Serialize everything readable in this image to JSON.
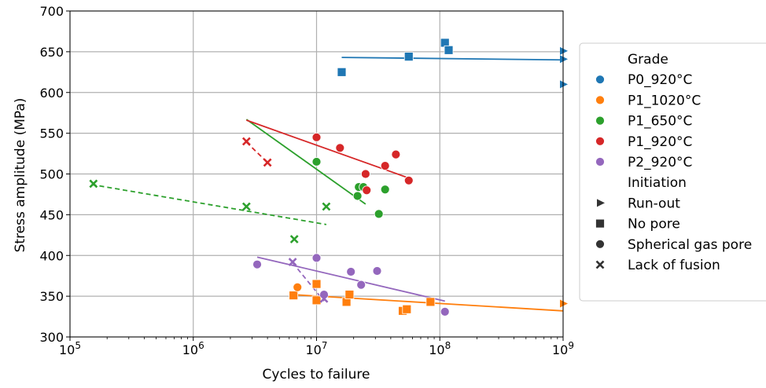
{
  "chart_data": {
    "type": "scatter",
    "xlabel": "Cycles to failure",
    "ylabel": "Stress amplitude (MPa)",
    "xscale": "log",
    "xlim": [
      100000,
      1000000000
    ],
    "ylim": [
      300,
      700
    ],
    "x_ticks": [
      100000,
      1000000,
      10000000,
      100000000,
      1000000000
    ],
    "x_tick_base": "10",
    "x_tick_exponents": [
      "5",
      "6",
      "7",
      "8",
      "9"
    ],
    "y_ticks": [
      "300",
      "350",
      "400",
      "450",
      "500",
      "550",
      "600",
      "650",
      "700"
    ],
    "grid": true,
    "legend_position": "right",
    "legend": {
      "hue_title": "Grade",
      "style_title": "Initiation",
      "grades": [
        {
          "name": "P0_920°C",
          "color": "#1f77b4"
        },
        {
          "name": "P1_1020°C",
          "color": "#ff7f0e"
        },
        {
          "name": "P1_650°C",
          "color": "#2ca02c"
        },
        {
          "name": "P1_920°C",
          "color": "#d62728"
        },
        {
          "name": "P2_920°C",
          "color": "#9467bd"
        }
      ],
      "initiations": [
        {
          "name": "Run-out",
          "marker": "triangle"
        },
        {
          "name": "No pore",
          "marker": "square"
        },
        {
          "name": "Spherical gas pore",
          "marker": "circle"
        },
        {
          "name": "Lack of fusion",
          "marker": "x"
        }
      ]
    },
    "points": [
      {
        "grade": "P0_920°C",
        "initiation": "No pore",
        "x": 16000000,
        "y": 625
      },
      {
        "grade": "P0_920°C",
        "initiation": "No pore",
        "x": 56000000,
        "y": 644
      },
      {
        "grade": "P0_920°C",
        "initiation": "No pore",
        "x": 110000000,
        "y": 661
      },
      {
        "grade": "P0_920°C",
        "initiation": "No pore",
        "x": 118000000,
        "y": 652
      },
      {
        "grade": "P0_920°C",
        "initiation": "Run-out",
        "x": 1000000000,
        "y": 651
      },
      {
        "grade": "P0_920°C",
        "initiation": "Run-out",
        "x": 1000000000,
        "y": 641
      },
      {
        "grade": "P0_920°C",
        "initiation": "Run-out",
        "x": 1000000000,
        "y": 610
      },
      {
        "grade": "P1_1020°C",
        "initiation": "No pore",
        "x": 6500000,
        "y": 351
      },
      {
        "grade": "P1_1020°C",
        "initiation": "No pore",
        "x": 10000000,
        "y": 365
      },
      {
        "grade": "P1_1020°C",
        "initiation": "No pore",
        "x": 10000000,
        "y": 345
      },
      {
        "grade": "P1_1020°C",
        "initiation": "No pore",
        "x": 17500000,
        "y": 343
      },
      {
        "grade": "P1_1020°C",
        "initiation": "No pore",
        "x": 18500000,
        "y": 352
      },
      {
        "grade": "P1_1020°C",
        "initiation": "No pore",
        "x": 50000000,
        "y": 332
      },
      {
        "grade": "P1_1020°C",
        "initiation": "No pore",
        "x": 54000000,
        "y": 334
      },
      {
        "grade": "P1_1020°C",
        "initiation": "No pore",
        "x": 84000000,
        "y": 343
      },
      {
        "grade": "P1_1020°C",
        "initiation": "Spherical gas pore",
        "x": 7000000,
        "y": 361
      },
      {
        "grade": "P1_1020°C",
        "initiation": "Run-out",
        "x": 1000000000,
        "y": 341
      },
      {
        "grade": "P1_650°C",
        "initiation": "Spherical gas pore",
        "x": 10000000,
        "y": 515
      },
      {
        "grade": "P1_650°C",
        "initiation": "Spherical gas pore",
        "x": 22000000,
        "y": 484
      },
      {
        "grade": "P1_650°C",
        "initiation": "Spherical gas pore",
        "x": 24000000,
        "y": 484
      },
      {
        "grade": "P1_650°C",
        "initiation": "Spherical gas pore",
        "x": 21500000,
        "y": 473
      },
      {
        "grade": "P1_650°C",
        "initiation": "Spherical gas pore",
        "x": 36000000,
        "y": 481
      },
      {
        "grade": "P1_650°C",
        "initiation": "Spherical gas pore",
        "x": 32000000,
        "y": 451
      },
      {
        "grade": "P1_650°C",
        "initiation": "Lack of fusion",
        "x": 155000,
        "y": 488
      },
      {
        "grade": "P1_650°C",
        "initiation": "Lack of fusion",
        "x": 2700000,
        "y": 460
      },
      {
        "grade": "P1_650°C",
        "initiation": "Lack of fusion",
        "x": 12000000,
        "y": 460
      },
      {
        "grade": "P1_650°C",
        "initiation": "Lack of fusion",
        "x": 6600000,
        "y": 420
      },
      {
        "grade": "P1_920°C",
        "initiation": "Spherical gas pore",
        "x": 10000000,
        "y": 545
      },
      {
        "grade": "P1_920°C",
        "initiation": "Spherical gas pore",
        "x": 15500000,
        "y": 532
      },
      {
        "grade": "P1_920°C",
        "initiation": "Spherical gas pore",
        "x": 25000000,
        "y": 500
      },
      {
        "grade": "P1_920°C",
        "initiation": "Spherical gas pore",
        "x": 25500000,
        "y": 480
      },
      {
        "grade": "P1_920°C",
        "initiation": "Spherical gas pore",
        "x": 36000000,
        "y": 510
      },
      {
        "grade": "P1_920°C",
        "initiation": "Spherical gas pore",
        "x": 44000000,
        "y": 524
      },
      {
        "grade": "P1_920°C",
        "initiation": "Spherical gas pore",
        "x": 56000000,
        "y": 492
      },
      {
        "grade": "P1_920°C",
        "initiation": "Lack of fusion",
        "x": 2700000,
        "y": 540
      },
      {
        "grade": "P1_920°C",
        "initiation": "Lack of fusion",
        "x": 4000000,
        "y": 514
      },
      {
        "grade": "P2_920°C",
        "initiation": "Spherical gas pore",
        "x": 3300000,
        "y": 389
      },
      {
        "grade": "P2_920°C",
        "initiation": "Spherical gas pore",
        "x": 10000000,
        "y": 397
      },
      {
        "grade": "P2_920°C",
        "initiation": "Spherical gas pore",
        "x": 19000000,
        "y": 380
      },
      {
        "grade": "P2_920°C",
        "initiation": "Spherical gas pore",
        "x": 31000000,
        "y": 381
      },
      {
        "grade": "P2_920°C",
        "initiation": "Spherical gas pore",
        "x": 23000000,
        "y": 364
      },
      {
        "grade": "P2_920°C",
        "initiation": "Spherical gas pore",
        "x": 11500000,
        "y": 352
      },
      {
        "grade": "P2_920°C",
        "initiation": "Spherical gas pore",
        "x": 110000000,
        "y": 331
      },
      {
        "grade": "P2_920°C",
        "initiation": "Lack of fusion",
        "x": 6400000,
        "y": 392
      },
      {
        "grade": "P2_920°C",
        "initiation": "Lack of fusion",
        "x": 11500000,
        "y": 347
      }
    ],
    "fit_lines": [
      {
        "grade": "P0_920°C",
        "style": "solid",
        "x": [
          16000000,
          1000000000
        ],
        "y": [
          643,
          640
        ]
      },
      {
        "grade": "P1_1020°C",
        "style": "solid",
        "x": [
          6300000,
          1000000000
        ],
        "y": [
          352,
          332
        ]
      },
      {
        "grade": "P1_650°C",
        "style": "solid",
        "x": [
          2700000,
          25000000
        ],
        "y": [
          567,
          463
        ]
      },
      {
        "grade": "P1_920°C",
        "style": "solid",
        "x": [
          2700000,
          56000000
        ],
        "y": [
          566,
          495
        ]
      },
      {
        "grade": "P2_920°C",
        "style": "solid",
        "x": [
          3300000,
          110000000
        ],
        "y": [
          398,
          344
        ]
      },
      {
        "grade": "P1_650°C",
        "style": "dashed",
        "x": [
          150000,
          12000000
        ],
        "y": [
          487,
          438
        ]
      },
      {
        "grade": "P1_920°C",
        "style": "dashed",
        "x": [
          2700000,
          4000000
        ],
        "y": [
          539,
          514
        ]
      },
      {
        "grade": "P2_920°C",
        "style": "dashed",
        "x": [
          6400000,
          11500000
        ],
        "y": [
          391,
          344
        ]
      }
    ]
  }
}
